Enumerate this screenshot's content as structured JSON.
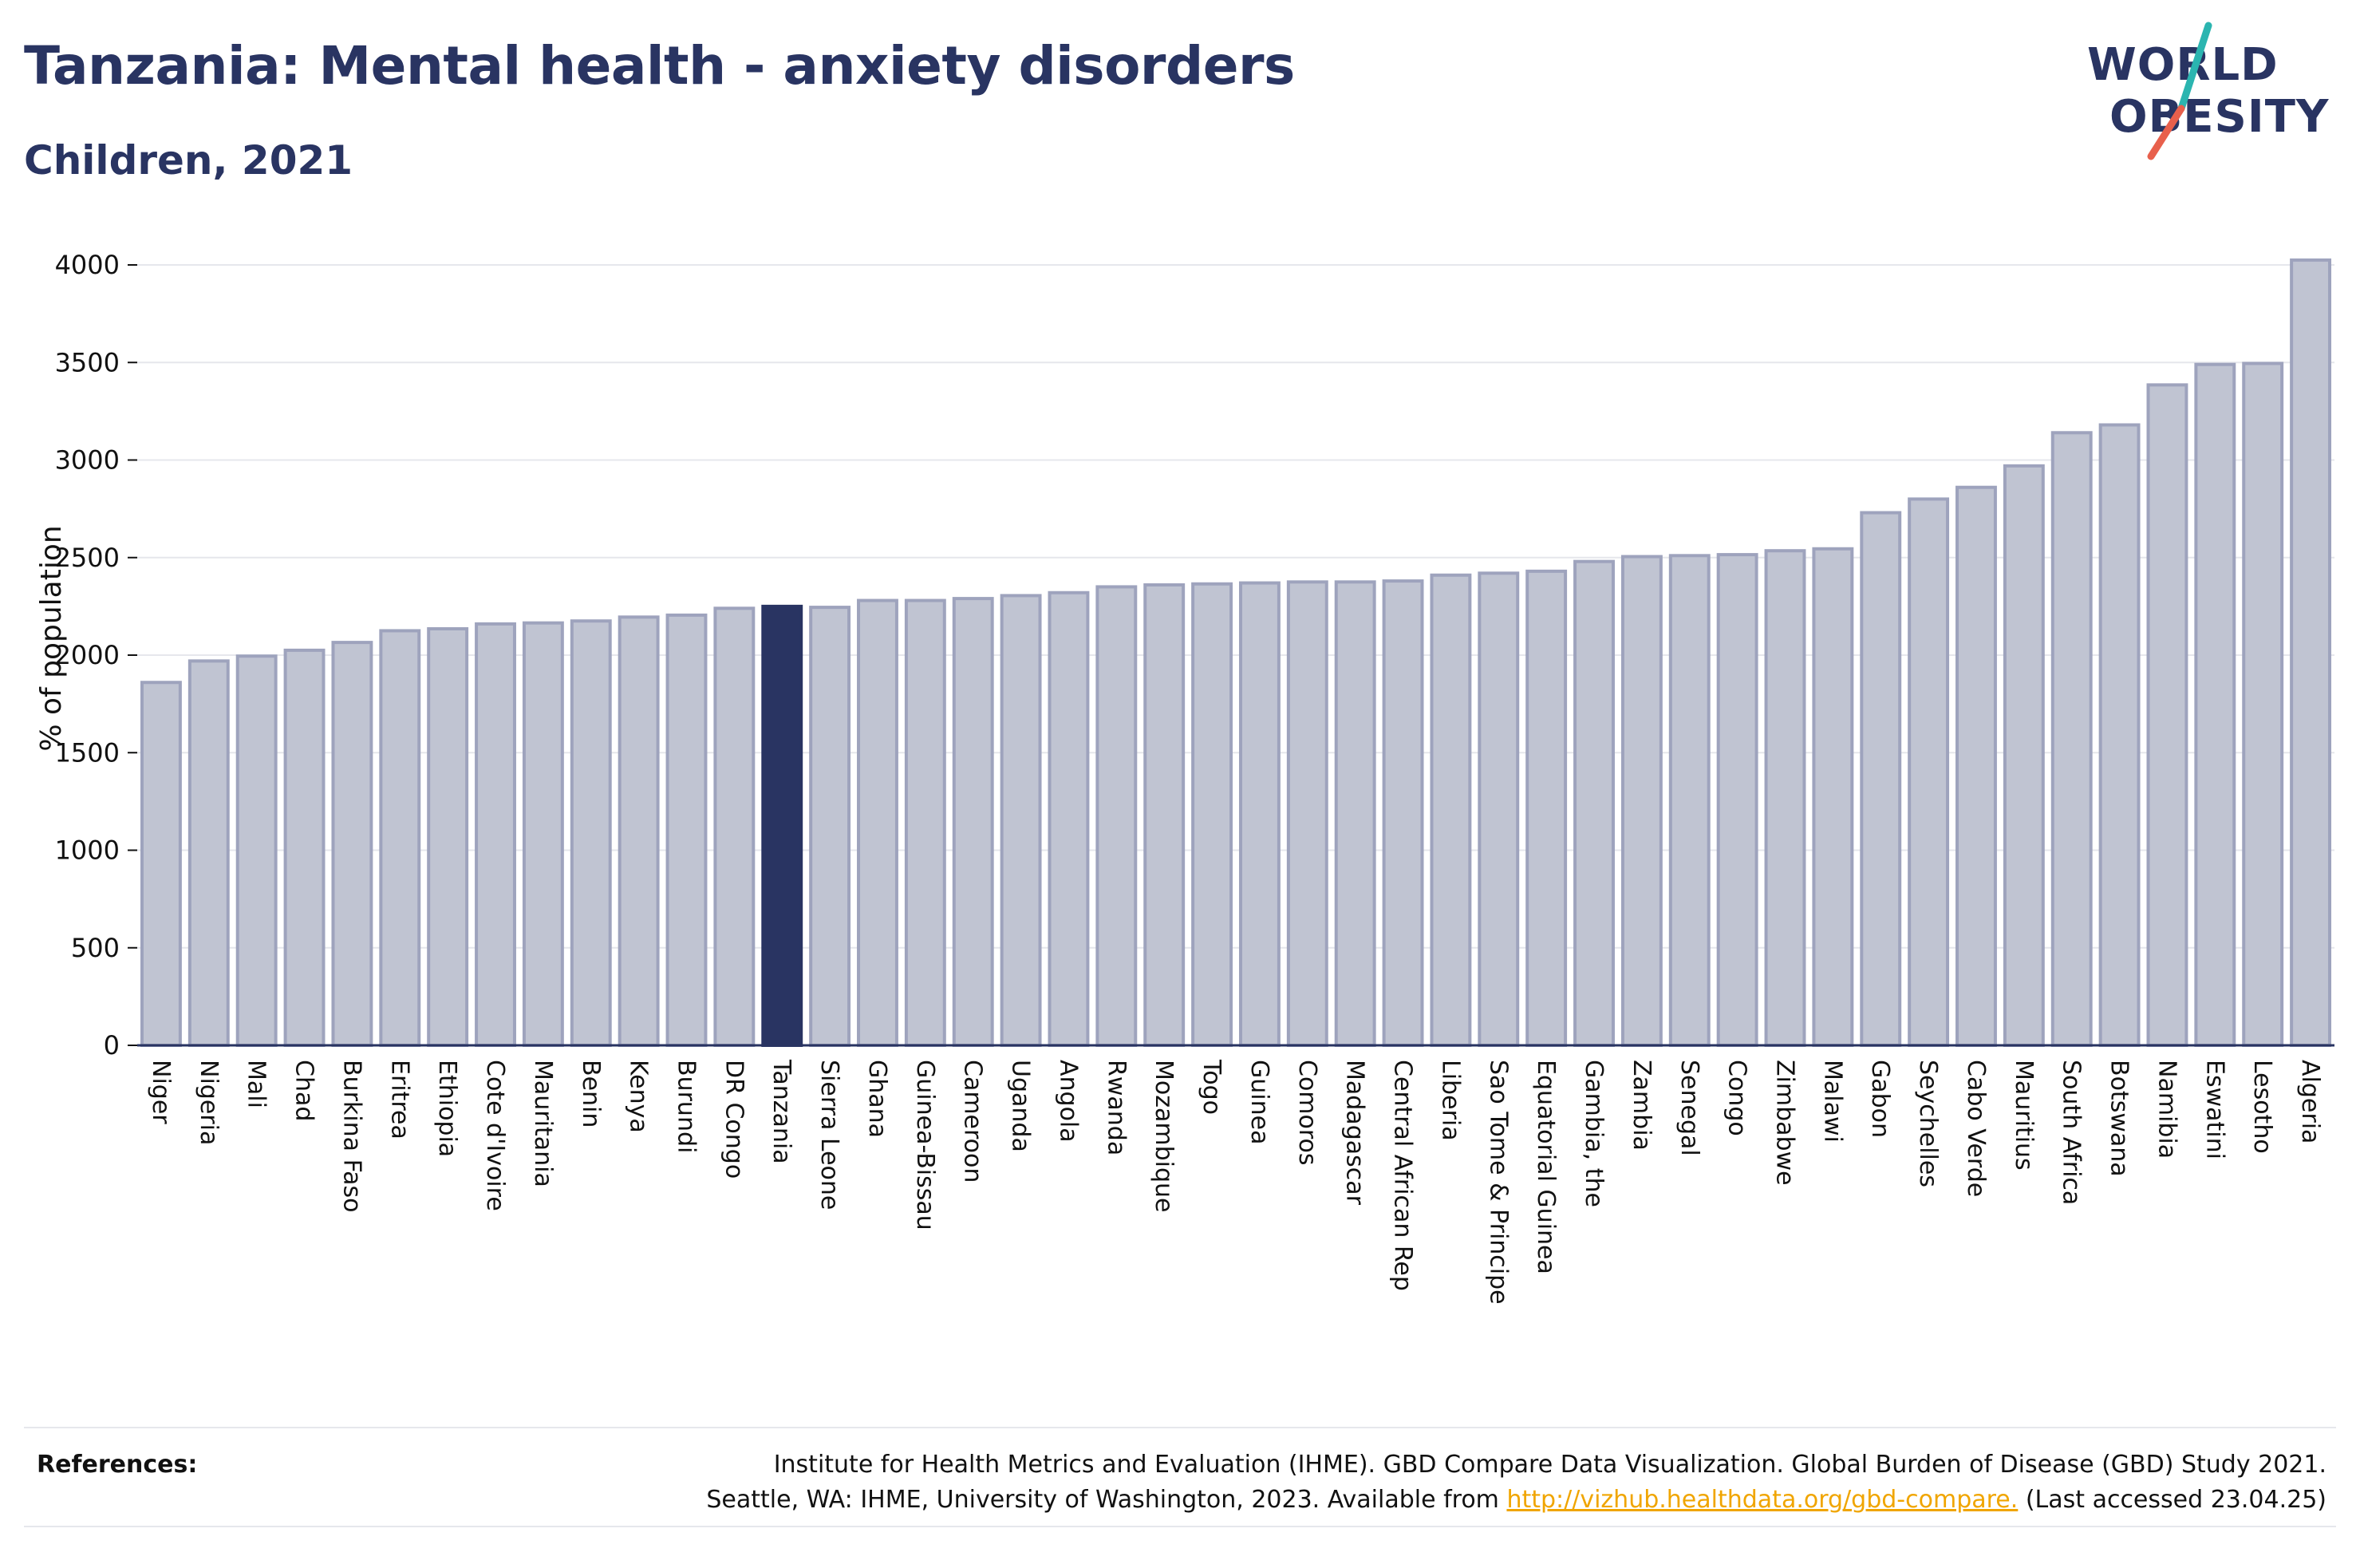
{
  "header": {
    "title": "Tanzania: Mental health - anxiety disorders",
    "subtitle": "Children, 2021"
  },
  "logo": {
    "line1": "WORLD",
    "line2": "OBESITY"
  },
  "colors": {
    "accent": "#293462",
    "bar_default": "#c0c4d2",
    "bar_stroke": "#9ea3bd",
    "gridline": "#e6e7ec",
    "link": "#f0a500",
    "logo_teal": "#2bb5b0",
    "logo_coral": "#e8604c"
  },
  "chart_data": {
    "type": "bar",
    "ylabel": "% of population",
    "xlabel": "",
    "ylim": [
      0,
      4000
    ],
    "yticks": [
      0,
      500,
      1000,
      1500,
      2000,
      2500,
      3000,
      3500,
      4000
    ],
    "grid": true,
    "highlight": "Tanzania",
    "categories": [
      "Niger",
      "Nigeria",
      "Mali",
      "Chad",
      "Burkina Faso",
      "Eritrea",
      "Ethiopia",
      "Cote d'Ivoire",
      "Mauritania",
      "Benin",
      "Kenya",
      "Burundi",
      "DR Congo",
      "Tanzania",
      "Sierra Leone",
      "Ghana",
      "Guinea-Bissau",
      "Cameroon",
      "Uganda",
      "Angola",
      "Rwanda",
      "Mozambique",
      "Togo",
      "Guinea",
      "Comoros",
      "Madagascar",
      "Central African Rep",
      "Liberia",
      "Sao Tome & Principe",
      "Equatorial Guinea",
      "Gambia, the",
      "Zambia",
      "Senegal",
      "Congo",
      "Zimbabwe",
      "Malawi",
      "Gabon",
      "Seychelles",
      "Cabo Verde",
      "Mauritius",
      "South Africa",
      "Botswana",
      "Namibia",
      "Eswatini",
      "Lesotho",
      "Algeria"
    ],
    "values": [
      1860,
      1970,
      1995,
      2025,
      2065,
      2125,
      2135,
      2160,
      2165,
      2175,
      2195,
      2205,
      2240,
      2250,
      2245,
      2280,
      2280,
      2290,
      2305,
      2320,
      2350,
      2360,
      2365,
      2370,
      2375,
      2375,
      2380,
      2410,
      2420,
      2430,
      2480,
      2505,
      2510,
      2515,
      2535,
      2545,
      2730,
      2800,
      2860,
      2970,
      3140,
      3180,
      3385,
      3490,
      3495,
      4025
    ]
  },
  "references": {
    "label": "References:",
    "line1": "Institute for Health Metrics and Evaluation (IHME). GBD Compare Data Visualization. Global Burden of Disease (GBD) Study 2021.",
    "line2_prefix": "Seattle, WA: IHME, University of Washington, 2023. Available from ",
    "link_text": "http://vizhub.healthdata.org/gbd-compare.",
    "line2_suffix": " (Last accessed 23.04.25)"
  }
}
